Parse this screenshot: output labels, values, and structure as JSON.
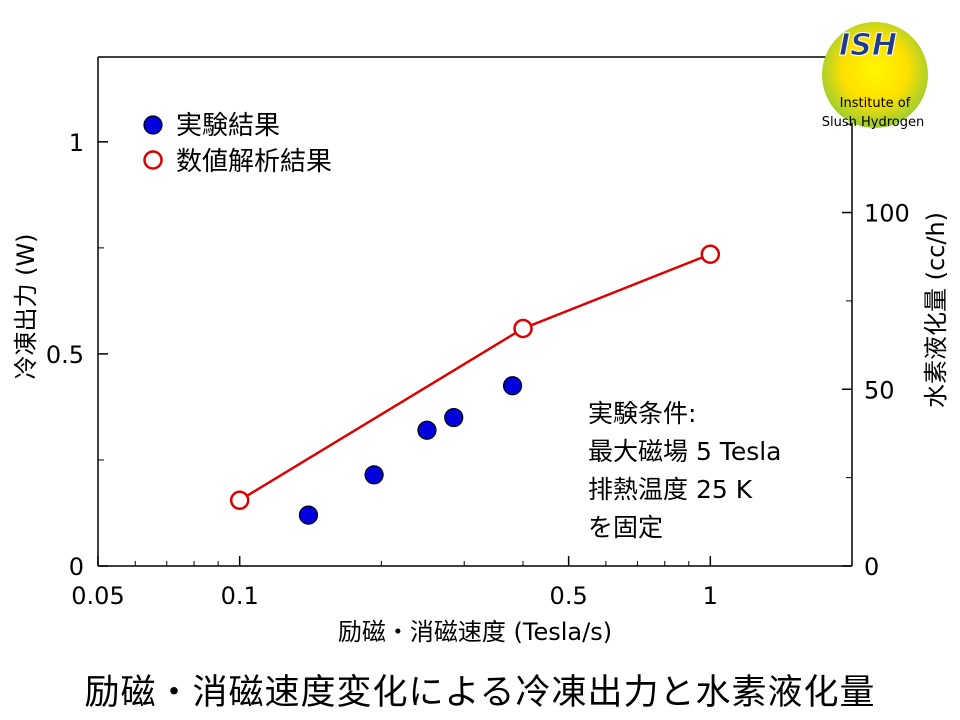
{
  "chart_data": {
    "type": "scatter",
    "xlabel": "励磁・消磁速度 (Tesla/s)",
    "ylabel": "冷凍出力 (W)",
    "y2label": "水素液化量 (cc/h)",
    "xscale": "log",
    "xlim": [
      0.05,
      2.0
    ],
    "ylim": [
      0,
      1.2
    ],
    "y2lim": [
      0,
      144
    ],
    "xticks": [
      0.05,
      0.1,
      0.5,
      1
    ],
    "xtick_labels": [
      "0.05",
      "0.1",
      "0.5",
      "1"
    ],
    "yticks": [
      0,
      0.5,
      1
    ],
    "ytick_labels": [
      "0",
      "0.5",
      "1"
    ],
    "y2ticks": [
      0,
      50,
      100
    ],
    "y2tick_labels": [
      "0",
      "50",
      "100"
    ],
    "legend_position": "top-left",
    "series": [
      {
        "name": "実験結果",
        "marker": "filled-circle",
        "color": "#0000dd",
        "x": [
          0.14,
          0.193,
          0.25,
          0.285,
          0.38
        ],
        "y": [
          0.12,
          0.215,
          0.32,
          0.35,
          0.425
        ]
      },
      {
        "name": "数値解析結果",
        "marker": "open-circle-line",
        "color": "#dd0000",
        "x": [
          0.1,
          0.4,
          1.0
        ],
        "y": [
          0.155,
          0.56,
          0.735
        ]
      }
    ],
    "annotation": {
      "lines": [
        "実験条件:",
        "最大磁場 5 Tesla",
        "排熱温度 25 K",
        "を固定"
      ]
    }
  },
  "logo": {
    "title": "ISH",
    "subtitle_lines": [
      "Institute of",
      "Slush Hydrogen"
    ]
  },
  "caption": "励磁・消磁速度変化による冷凍出力と水素液化量"
}
